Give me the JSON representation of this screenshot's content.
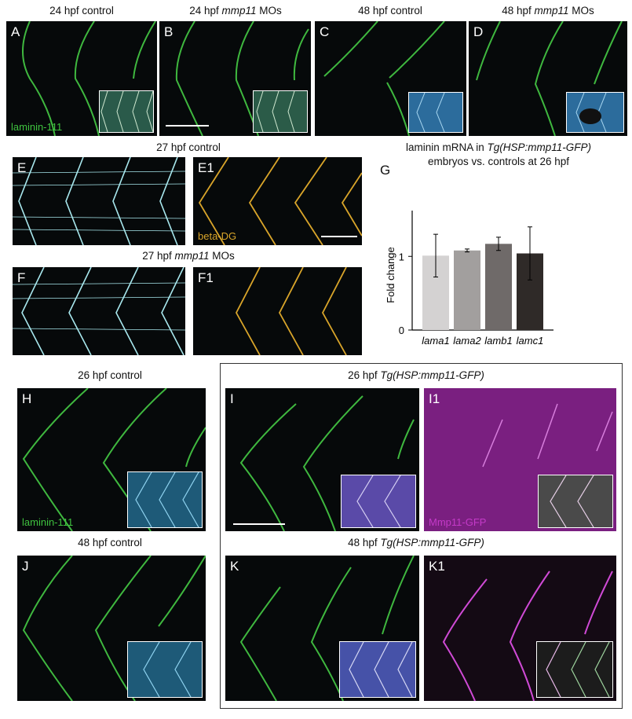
{
  "top_row": {
    "A": {
      "letter": "A",
      "caption_pre": "24 hpf control",
      "caption_it": "",
      "caption_post": "",
      "stain": "laminin-111"
    },
    "B": {
      "letter": "B",
      "caption_pre": "24 hpf ",
      "caption_it": "mmp11",
      "caption_post": " MOs"
    },
    "C": {
      "letter": "C",
      "caption_pre": "48 hpf control",
      "caption_it": "",
      "caption_post": ""
    },
    "D": {
      "letter": "D",
      "caption_pre": "48 hpf ",
      "caption_it": "mmp11",
      "caption_post": " MOs"
    }
  },
  "middle": {
    "ctrl_caption_pre": "27 hpf control",
    "mo_caption_pre": "27 hpf ",
    "mo_caption_it": "mmp11",
    "mo_caption_post": " MOs",
    "E": "E",
    "E1": "E1",
    "F": "F",
    "F1": "F1",
    "e1_stain": "beta-DG"
  },
  "chart_title": {
    "line1_pre": "laminin mRNA in ",
    "line1_it": "Tg(HSP:mmp11-GFP)",
    "line2": "embryos vs. controls at 26 hpf",
    "letter": "G"
  },
  "chart_data": {
    "type": "bar",
    "categories": [
      "lama1",
      "lama2",
      "lamb1",
      "lamc1"
    ],
    "values": [
      1.01,
      1.08,
      1.17,
      1.04
    ],
    "error_low": [
      0.72,
      1.06,
      1.08,
      0.68
    ],
    "error_high": [
      1.3,
      1.1,
      1.26,
      1.4
    ],
    "colors": [
      "#d4d2d2",
      "#a29f9e",
      "#6f6a69",
      "#2f2a28"
    ],
    "ylabel": "Fold change",
    "yticks": [
      0,
      1
    ],
    "ylim": [
      0,
      1.6
    ]
  },
  "bottom": {
    "H_caption": "26 hpf control",
    "J_caption": "48 hpf control",
    "tg26_pre": "26 hpf ",
    "tg26_it": "Tg(HSP:mmp11-GFP)",
    "tg48_pre": "48 hpf ",
    "tg48_it": "Tg(HSP:mmp11-GFP)",
    "H": "H",
    "I": "I",
    "I1": "I1",
    "J": "J",
    "K": "K",
    "K1": "K1",
    "h_stain": "laminin-111",
    "i1_stain": "Mmp11-GFP"
  },
  "colors": {
    "green": "#3fc23f",
    "cyan": "#9ee6ec",
    "gold": "#d9a52a",
    "magenta": "#c43ac8"
  }
}
